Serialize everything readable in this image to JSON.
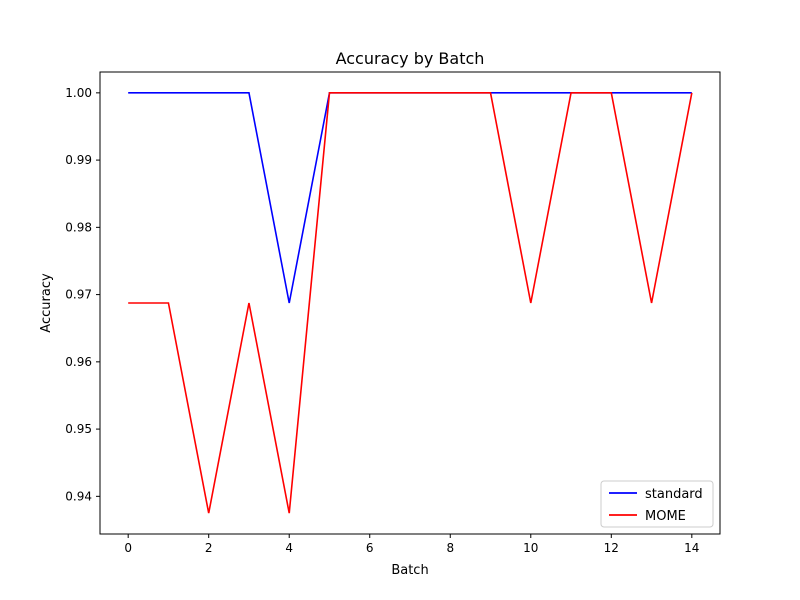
{
  "chart_data": {
    "type": "line",
    "title": "Accuracy by Batch",
    "xlabel": "Batch",
    "ylabel": "Accuracy",
    "xlim": [
      -0.7,
      14.7
    ],
    "ylim": [
      0.9344,
      1.0031
    ],
    "xticks": [
      0,
      2,
      4,
      6,
      8,
      10,
      12,
      14
    ],
    "xtick_labels": [
      "0",
      "2",
      "4",
      "6",
      "8",
      "10",
      "12",
      "14"
    ],
    "yticks": [
      0.94,
      0.95,
      0.96,
      0.97,
      0.98,
      0.99,
      1.0
    ],
    "ytick_labels": [
      "0.94",
      "0.95",
      "0.96",
      "0.97",
      "0.98",
      "0.99",
      "1.00"
    ],
    "grid": false,
    "legend_position": "lower-right",
    "x": [
      0,
      1,
      2,
      3,
      4,
      5,
      6,
      7,
      8,
      9,
      10,
      11,
      12,
      13,
      14
    ],
    "series": [
      {
        "name": "standard",
        "color": "#0000ff",
        "values": [
          1.0,
          1.0,
          1.0,
          1.0,
          0.96875,
          1.0,
          1.0,
          1.0,
          1.0,
          1.0,
          1.0,
          1.0,
          1.0,
          1.0,
          1.0
        ]
      },
      {
        "name": "MOME",
        "color": "#ff0000",
        "values": [
          0.96875,
          0.96875,
          0.9375,
          0.96875,
          0.9375,
          1.0,
          1.0,
          1.0,
          1.0,
          1.0,
          0.96875,
          1.0,
          1.0,
          0.96875,
          1.0
        ]
      }
    ]
  }
}
